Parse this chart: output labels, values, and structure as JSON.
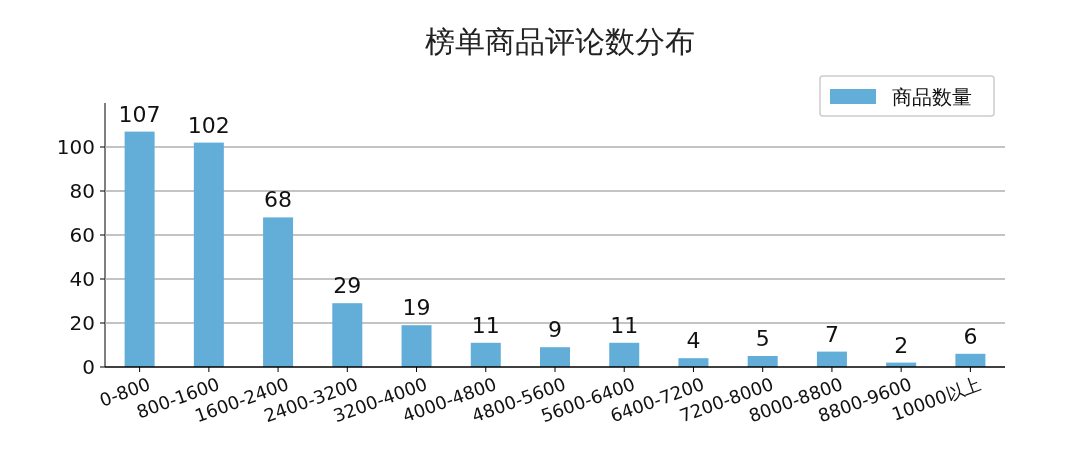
{
  "chart_data": {
    "type": "bar",
    "title": "榜单商品评论数分布",
    "categories": [
      "0-800",
      "800-1600",
      "1600-2400",
      "2400-3200",
      "3200-4000",
      "4000-4800",
      "4800-5600",
      "5600-6400",
      "6400-7200",
      "7200-8000",
      "8000-8800",
      "8800-9600",
      "10000以上"
    ],
    "series": [
      {
        "name": "商品数量",
        "color": "#62aed9",
        "values": [
          107,
          102,
          68,
          29,
          19,
          11,
          9,
          11,
          4,
          5,
          7,
          2,
          6
        ]
      }
    ],
    "ylim": [
      0,
      120
    ],
    "yticks": [
      0,
      20,
      40,
      60,
      80,
      100
    ],
    "grid": "y",
    "legend": "top right",
    "data_labels": true
  }
}
